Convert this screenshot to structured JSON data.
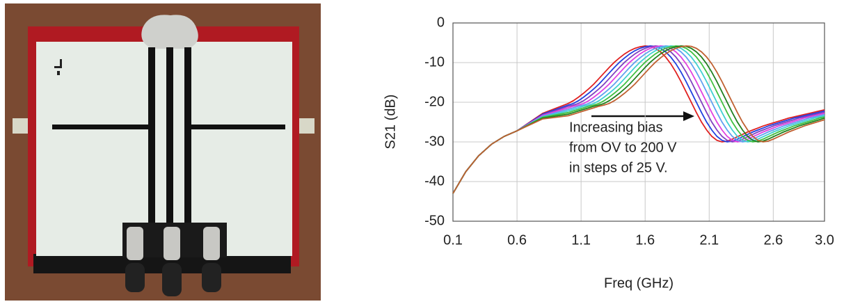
{
  "chart_data": {
    "type": "line",
    "xlabel": "Freq (GHz)",
    "ylabel": "S21 (dB)",
    "annotations": [
      "Increasing bias",
      "from OV to 200 V",
      "in steps of 25 V."
    ],
    "xlim": [
      0.1,
      3.0
    ],
    "xticks": [
      0.1,
      0.6,
      1.1,
      1.6,
      2.1,
      2.6,
      {
        "value": 3.0,
        "label": "3.0"
      }
    ],
    "ylim": [
      -50,
      0
    ],
    "yticks": [
      0,
      -10,
      -20,
      -30,
      -40,
      -50
    ],
    "grid": true,
    "x": [
      0.1,
      0.2,
      0.3,
      0.4,
      0.5,
      0.6,
      0.8,
      1.0,
      1.04,
      1.08,
      1.12,
      1.16,
      1.2,
      1.24,
      1.28,
      1.32,
      1.36,
      1.4,
      1.44,
      1.48,
      1.52,
      1.56,
      1.6,
      1.64,
      1.68,
      1.72,
      1.76,
      1.8,
      1.84,
      1.88,
      1.92,
      1.96,
      2.0,
      2.04,
      2.08,
      2.12,
      2.16,
      2.2,
      2.24,
      2.28,
      2.32,
      2.36,
      2.4,
      2.44,
      2.48,
      2.52,
      2.56,
      2.6,
      2.64,
      2.68,
      2.72,
      2.76,
      2.8,
      2.84,
      2.88,
      2.92,
      2.96,
      3.0
    ],
    "series": [
      {
        "color": "#e02020",
        "values": [
          -43,
          -37.5,
          -33.5,
          -30.6,
          -28.6,
          -27.2,
          -22.8,
          -20.3,
          -19.6,
          -18.7,
          -17.7,
          -16.6,
          -15.4,
          -14.0,
          -12.6,
          -11.2,
          -9.9,
          -8.8,
          -7.8,
          -7.0,
          -6.4,
          -6.0,
          -5.8,
          -5.9,
          -6.4,
          -7.3,
          -8.6,
          -10.3,
          -12.4,
          -14.8,
          -17.4,
          -20.0,
          -22.6,
          -25.0,
          -27.0,
          -28.6,
          -29.6,
          -30.0,
          -29.8,
          -29.3,
          -28.7,
          -28.1,
          -27.5,
          -27.0,
          -26.5,
          -26.0,
          -25.6,
          -25.2,
          -24.8,
          -24.4,
          -24.0,
          -23.7,
          -23.4,
          -23.1,
          -22.8,
          -22.5,
          -22.2,
          -21.9
        ]
      },
      {
        "color": "#2040e0",
        "values": [
          -43,
          -37.5,
          -33.5,
          -30.6,
          -28.6,
          -27.2,
          -23.0,
          -20.7,
          -20.3,
          -19.6,
          -18.7,
          -17.7,
          -16.6,
          -15.4,
          -14.0,
          -12.6,
          -11.2,
          -9.9,
          -8.8,
          -7.8,
          -7.0,
          -6.4,
          -6.0,
          -5.8,
          -5.9,
          -6.4,
          -7.3,
          -8.6,
          -10.3,
          -12.4,
          -14.8,
          -17.4,
          -20.0,
          -22.6,
          -25.0,
          -27.0,
          -28.6,
          -29.6,
          -30.0,
          -29.8,
          -29.3,
          -28.7,
          -28.1,
          -27.5,
          -27.0,
          -26.5,
          -26.0,
          -25.6,
          -25.2,
          -24.8,
          -24.4,
          -24.0,
          -23.7,
          -23.4,
          -23.1,
          -22.8,
          -22.5,
          -22.2
        ]
      },
      {
        "color": "#8040c0",
        "values": [
          -43,
          -37.5,
          -33.5,
          -30.6,
          -28.6,
          -27.2,
          -23.2,
          -21.0,
          -20.7,
          -20.3,
          -19.6,
          -18.7,
          -17.7,
          -16.6,
          -15.4,
          -14.0,
          -12.6,
          -11.2,
          -9.9,
          -8.8,
          -7.8,
          -7.0,
          -6.4,
          -6.0,
          -5.8,
          -5.9,
          -6.4,
          -7.3,
          -8.6,
          -10.3,
          -12.4,
          -14.8,
          -17.4,
          -20.0,
          -22.6,
          -25.0,
          -27.0,
          -28.6,
          -29.6,
          -30.0,
          -29.8,
          -29.3,
          -28.7,
          -28.1,
          -27.5,
          -27.0,
          -26.5,
          -26.0,
          -25.6,
          -25.2,
          -24.8,
          -24.4,
          -24.0,
          -23.7,
          -23.4,
          -23.1,
          -22.8,
          -22.5
        ]
      },
      {
        "color": "#e040e0",
        "values": [
          -43,
          -37.5,
          -33.5,
          -30.6,
          -28.6,
          -27.2,
          -23.3,
          -21.4,
          -21.0,
          -20.7,
          -20.3,
          -19.6,
          -18.7,
          -17.7,
          -16.6,
          -15.4,
          -14.0,
          -12.6,
          -11.2,
          -9.9,
          -8.8,
          -7.8,
          -7.0,
          -6.4,
          -6.0,
          -5.8,
          -5.9,
          -6.4,
          -7.3,
          -8.6,
          -10.3,
          -12.4,
          -14.8,
          -17.4,
          -20.0,
          -22.6,
          -25.0,
          -27.0,
          -28.6,
          -29.6,
          -30.0,
          -29.8,
          -29.3,
          -28.7,
          -28.1,
          -27.5,
          -27.0,
          -26.5,
          -26.0,
          -25.6,
          -25.2,
          -24.8,
          -24.4,
          -24.0,
          -23.7,
          -23.4,
          -23.1,
          -22.8
        ]
      },
      {
        "color": "#60a0f0",
        "values": [
          -43,
          -37.5,
          -33.5,
          -30.6,
          -28.6,
          -27.2,
          -23.5,
          -21.8,
          -21.4,
          -21.0,
          -20.7,
          -20.3,
          -19.6,
          -18.7,
          -17.7,
          -16.6,
          -15.4,
          -14.0,
          -12.6,
          -11.2,
          -9.9,
          -8.8,
          -7.8,
          -7.0,
          -6.4,
          -6.0,
          -5.8,
          -5.9,
          -6.4,
          -7.3,
          -8.6,
          -10.3,
          -12.4,
          -14.8,
          -17.4,
          -20.0,
          -22.6,
          -25.0,
          -27.0,
          -28.6,
          -29.6,
          -30.0,
          -29.8,
          -29.3,
          -28.7,
          -28.1,
          -27.5,
          -27.0,
          -26.5,
          -26.0,
          -25.6,
          -25.2,
          -24.8,
          -24.4,
          -24.0,
          -23.7,
          -23.4,
          -23.1
        ]
      },
      {
        "color": "#40d0d0",
        "values": [
          -43,
          -37.5,
          -33.5,
          -30.6,
          -28.6,
          -27.2,
          -23.7,
          -22.2,
          -21.8,
          -21.4,
          -21.0,
          -20.7,
          -20.3,
          -19.6,
          -18.7,
          -17.7,
          -16.6,
          -15.4,
          -14.0,
          -12.6,
          -11.2,
          -9.9,
          -8.8,
          -7.8,
          -7.0,
          -6.4,
          -6.0,
          -5.8,
          -5.9,
          -6.4,
          -7.3,
          -8.6,
          -10.3,
          -12.4,
          -14.8,
          -17.4,
          -20.0,
          -22.6,
          -25.0,
          -27.0,
          -28.6,
          -29.6,
          -30.0,
          -29.8,
          -29.3,
          -28.7,
          -28.1,
          -27.5,
          -27.0,
          -26.5,
          -26.0,
          -25.6,
          -25.2,
          -24.8,
          -24.4,
          -24.0,
          -23.7,
          -23.4
        ]
      },
      {
        "color": "#40c040",
        "values": [
          -43,
          -37.5,
          -33.5,
          -30.6,
          -28.6,
          -27.2,
          -23.8,
          -22.6,
          -22.2,
          -21.8,
          -21.4,
          -21.0,
          -20.7,
          -20.3,
          -19.6,
          -18.7,
          -17.7,
          -16.6,
          -15.4,
          -14.0,
          -12.6,
          -11.2,
          -9.9,
          -8.8,
          -7.8,
          -7.0,
          -6.4,
          -6.0,
          -5.8,
          -5.9,
          -6.4,
          -7.3,
          -8.6,
          -10.3,
          -12.4,
          -14.8,
          -17.4,
          -20.0,
          -22.6,
          -25.0,
          -27.0,
          -28.6,
          -29.6,
          -30.0,
          -29.8,
          -29.3,
          -28.7,
          -28.1,
          -27.5,
          -27.0,
          -26.5,
          -26.0,
          -25.6,
          -25.2,
          -24.8,
          -24.4,
          -24.0,
          -23.7
        ]
      },
      {
        "color": "#208020",
        "values": [
          -43,
          -37.5,
          -33.5,
          -30.6,
          -28.6,
          -27.2,
          -24.0,
          -23.0,
          -22.6,
          -22.2,
          -21.8,
          -21.4,
          -21.0,
          -20.7,
          -20.3,
          -19.6,
          -18.7,
          -17.7,
          -16.6,
          -15.4,
          -14.0,
          -12.6,
          -11.2,
          -9.9,
          -8.8,
          -7.8,
          -7.0,
          -6.4,
          -6.0,
          -5.8,
          -5.9,
          -6.4,
          -7.3,
          -8.6,
          -10.3,
          -12.4,
          -14.8,
          -17.4,
          -20.0,
          -22.6,
          -25.0,
          -27.0,
          -28.6,
          -29.6,
          -30.0,
          -29.8,
          -29.3,
          -28.7,
          -28.1,
          -27.5,
          -27.0,
          -26.5,
          -26.0,
          -25.6,
          -25.2,
          -24.8,
          -24.4,
          -24.0
        ]
      },
      {
        "color": "#c06030",
        "values": [
          -43,
          -37.5,
          -33.5,
          -30.6,
          -28.6,
          -27.2,
          -24.2,
          -23.4,
          -23.0,
          -22.6,
          -22.2,
          -21.8,
          -21.4,
          -21.0,
          -20.7,
          -20.3,
          -19.6,
          -18.7,
          -17.7,
          -16.6,
          -15.4,
          -14.0,
          -12.6,
          -11.2,
          -9.9,
          -8.8,
          -7.8,
          -7.0,
          -6.4,
          -6.0,
          -5.8,
          -5.9,
          -6.4,
          -7.3,
          -8.6,
          -10.3,
          -12.4,
          -14.8,
          -17.4,
          -20.0,
          -22.6,
          -25.0,
          -27.0,
          -28.6,
          -29.6,
          -30.0,
          -29.8,
          -29.3,
          -28.7,
          -28.1,
          -27.5,
          -27.0,
          -26.5,
          -26.0,
          -25.6,
          -25.2,
          -24.8,
          -24.4
        ]
      }
    ]
  }
}
